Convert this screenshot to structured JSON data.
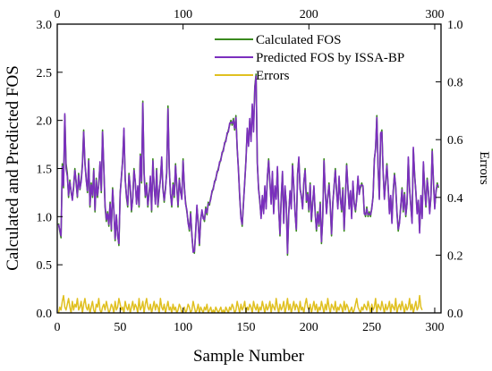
{
  "chart_data": {
    "type": "line",
    "xlabel": "Sample Number",
    "ylabel_left": "Calculated and Predicted FOS",
    "ylabel_right": "Errors",
    "xlim": [
      0,
      305
    ],
    "ylim_left": [
      0,
      3.0
    ],
    "ylim_right": [
      0,
      1.0
    ],
    "x_ticks": [
      "0",
      "50",
      "100",
      "150",
      "200",
      "250",
      "300"
    ],
    "x_ticks_top": [
      "0",
      "100",
      "200",
      "300"
    ],
    "y_ticks_left": [
      "0.0",
      "0.5",
      "1.0",
      "1.5",
      "2.0",
      "2.5",
      "3.0"
    ],
    "y_ticks_right": [
      "0.0",
      "0.2",
      "0.4",
      "0.6",
      "0.8",
      "1.0"
    ],
    "grid": false,
    "legend_position": "top-center",
    "series": [
      {
        "name": "Calculated FOS",
        "axis": "left",
        "color": "#3a8a1e",
        "values": [
          0.93,
          0.85,
          0.78,
          1.55,
          1.3,
          2.05,
          1.55,
          1.45,
          1.2,
          1.38,
          1.25,
          1.18,
          1.3,
          1.5,
          1.35,
          1.2,
          1.45,
          1.28,
          1.38,
          1.55,
          1.9,
          1.55,
          1.4,
          1.25,
          1.6,
          1.1,
          1.35,
          1.2,
          1.5,
          1.05,
          1.4,
          1.2,
          1.35,
          1.55,
          1.25,
          1.9,
          1.5,
          1.1,
          0.95,
          1.05,
          0.9,
          1.15,
          0.85,
          1.3,
          1.05,
          0.75,
          1.0,
          0.82,
          0.7,
          1.25,
          1.4,
          1.6,
          1.9,
          1.4,
          1.2,
          1.1,
          1.45,
          1.3,
          1.05,
          1.2,
          1.5,
          1.35,
          1.15,
          1.3,
          1.1,
          1.65,
          1.35,
          2.2,
          1.45,
          1.2,
          1.35,
          1.1,
          1.25,
          1.4,
          1.05,
          1.6,
          1.3,
          1.15,
          1.5,
          1.1,
          1.25,
          1.4,
          1.6,
          1.3,
          1.15,
          1.3,
          1.45,
          2.15,
          1.5,
          1.25,
          1.1,
          1.35,
          1.2,
          1.55,
          1.3,
          1.1,
          1.4,
          1.25,
          1.2,
          1.6,
          1.3,
          1.15,
          1.05,
          0.95,
          0.85,
          1.05,
          0.8,
          0.65,
          0.62,
          0.85,
          1.1,
          0.95,
          0.7,
          0.98,
          1.05,
          1.0,
          0.95,
          1.1,
          1.02,
          1.15,
          1.12,
          1.2,
          1.25,
          1.3,
          1.35,
          1.4,
          1.45,
          1.5,
          1.55,
          1.6,
          1.65,
          1.7,
          1.75,
          1.8,
          1.85,
          1.9,
          1.95,
          2.0,
          1.95,
          2.02,
          1.9,
          2.05,
          1.7,
          1.5,
          1.2,
          1.0,
          0.9,
          1.15,
          1.35,
          1.6,
          1.9,
          1.75,
          2.0,
          1.8,
          2.15,
          1.9,
          2.35,
          2.48,
          1.55,
          1.3,
          1.15,
          1.0,
          1.2,
          1.05,
          1.3,
          1.1,
          1.4,
          1.6,
          1.35,
          1.15,
          1.45,
          1.05,
          1.3,
          1.2,
          1.5,
          1.1,
          0.8,
          1.2,
          1.45,
          0.95,
          1.3,
          1.15,
          0.6,
          1.05,
          1.25,
          1.1,
          1.55,
          1.3,
          1.05,
          0.85,
          1.45,
          1.6,
          1.3,
          1.2,
          1.1,
          1.35,
          1.5,
          1.15,
          1.25,
          1.05,
          1.35,
          0.95,
          1.15,
          1.3,
          1.05,
          0.85,
          1.05,
          0.9,
          1.15,
          0.72,
          1.0,
          1.6,
          1.25,
          1.05,
          1.2,
          1.35,
          1.1,
          0.8,
          1.15,
          1.3,
          1.5,
          1.25,
          1.1,
          1.4,
          1.2,
          1.05,
          1.3,
          0.85,
          1.2,
          1.55,
          1.3,
          1.1,
          1.25,
          1.0,
          1.35,
          1.15,
          1.05,
          1.2,
          1.4,
          1.25,
          1.3,
          1.35,
          1.3,
          1.05,
          1.0,
          1.1,
          1.0,
          1.05,
          1.0,
          1.1,
          1.2,
          1.6,
          1.7,
          2.05,
          1.5,
          1.2,
          1.85,
          1.9,
          1.45,
          1.2,
          1.35,
          1.55,
          1.3,
          1.05,
          1.2,
          0.95,
          1.25,
          1.45,
          1.3,
          1.05,
          0.85,
          0.95,
          1.1,
          1.3,
          1.05,
          1.25,
          1.0,
          1.15,
          1.6,
          1.3,
          1.1,
          0.95,
          1.7,
          1.45,
          1.25,
          1.05,
          1.15,
          0.85,
          1.2,
          1.0,
          1.55,
          1.3,
          1.1,
          1.4,
          1.25,
          1.05,
          1.2,
          1.7,
          1.35,
          1.1,
          1.25,
          1.35,
          1.3
        ]
      },
      {
        "name": "Predicted FOS by ISSA-BP",
        "axis": "left",
        "color": "#7b2fbe",
        "values": [
          0.92,
          0.86,
          0.8,
          1.52,
          1.32,
          2.07,
          1.5,
          1.42,
          1.22,
          1.36,
          1.27,
          1.17,
          1.32,
          1.48,
          1.37,
          1.21,
          1.43,
          1.29,
          1.36,
          1.53,
          1.88,
          1.57,
          1.38,
          1.27,
          1.58,
          1.12,
          1.33,
          1.22,
          1.48,
          1.07,
          1.38,
          1.22,
          1.33,
          1.57,
          1.27,
          1.88,
          1.52,
          1.12,
          0.97,
          1.03,
          0.92,
          1.13,
          0.87,
          1.28,
          1.07,
          0.77,
          1.02,
          0.8,
          0.72,
          1.23,
          1.42,
          1.58,
          1.92,
          1.38,
          1.22,
          1.12,
          1.43,
          1.32,
          1.07,
          1.18,
          1.48,
          1.37,
          1.13,
          1.32,
          1.12,
          1.63,
          1.37,
          2.18,
          1.47,
          1.22,
          1.33,
          1.12,
          1.23,
          1.42,
          1.07,
          1.58,
          1.32,
          1.13,
          1.48,
          1.12,
          1.27,
          1.38,
          1.62,
          1.28,
          1.17,
          1.28,
          1.47,
          2.12,
          1.52,
          1.23,
          1.12,
          1.33,
          1.22,
          1.53,
          1.32,
          1.12,
          1.38,
          1.27,
          1.18,
          1.58,
          1.32,
          1.13,
          1.07,
          0.93,
          0.87,
          1.03,
          0.82,
          0.63,
          0.64,
          0.83,
          1.12,
          0.93,
          0.72,
          0.96,
          1.07,
          0.98,
          0.97,
          1.08,
          1.04,
          1.13,
          1.14,
          1.18,
          1.27,
          1.28,
          1.37,
          1.38,
          1.47,
          1.48,
          1.57,
          1.58,
          1.67,
          1.68,
          1.77,
          1.78,
          1.87,
          1.88,
          1.97,
          1.98,
          1.97,
          2.0,
          1.92,
          2.03,
          1.72,
          1.48,
          1.22,
          0.98,
          0.92,
          1.13,
          1.37,
          1.58,
          1.92,
          1.73,
          2.02,
          1.78,
          2.17,
          1.88,
          2.33,
          2.46,
          1.57,
          1.28,
          1.17,
          0.98,
          1.22,
          1.03,
          1.32,
          1.08,
          1.42,
          1.58,
          1.37,
          1.13,
          1.47,
          1.03,
          1.32,
          1.18,
          1.52,
          1.08,
          0.82,
          1.18,
          1.47,
          0.93,
          1.32,
          1.13,
          0.62,
          1.03,
          1.27,
          1.08,
          1.53,
          1.32,
          1.03,
          0.87,
          1.43,
          1.62,
          1.28,
          1.22,
          1.08,
          1.37,
          1.48,
          1.17,
          1.23,
          1.07,
          1.33,
          0.97,
          1.13,
          1.32,
          1.03,
          0.87,
          1.03,
          0.92,
          1.13,
          0.74,
          0.98,
          1.58,
          1.27,
          1.03,
          1.22,
          1.33,
          1.12,
          0.82,
          1.13,
          1.32,
          1.48,
          1.27,
          1.08,
          1.42,
          1.18,
          1.07,
          1.28,
          0.87,
          1.18,
          1.53,
          1.32,
          1.08,
          1.27,
          0.98,
          1.37,
          1.13,
          1.07,
          1.18,
          1.42,
          1.23,
          1.32,
          1.33,
          1.32,
          1.03,
          1.02,
          1.08,
          1.02,
          1.03,
          1.02,
          1.08,
          1.22,
          1.58,
          1.72,
          2.03,
          1.52,
          1.18,
          1.87,
          1.88,
          1.47,
          1.18,
          1.37,
          1.53,
          1.32,
          1.03,
          1.22,
          0.93,
          1.27,
          1.43,
          1.32,
          1.03,
          0.87,
          0.93,
          1.12,
          1.28,
          1.07,
          1.23,
          1.02,
          1.13,
          1.62,
          1.28,
          1.12,
          0.93,
          1.72,
          1.43,
          1.27,
          1.03,
          1.17,
          0.83,
          1.22,
          0.98,
          1.57,
          1.28,
          1.12,
          1.38,
          1.27,
          1.03,
          1.22,
          1.68,
          1.37,
          1.08,
          1.27,
          1.33,
          1.32
        ]
      },
      {
        "name": "Errors",
        "axis": "right",
        "color": "#e0c020",
        "values": [
          0.0,
          0.02,
          0.01,
          0.04,
          0.06,
          0.02,
          0.01,
          0.03,
          0.05,
          0.02,
          0.0,
          0.04,
          0.01,
          0.03,
          0.02,
          0.05,
          0.01,
          0.02,
          0.04,
          0.0,
          0.03,
          0.05,
          0.02,
          0.01,
          0.03,
          0.0,
          0.02,
          0.04,
          0.01,
          0.0,
          0.03,
          0.02,
          0.05,
          0.01,
          0.0,
          0.02,
          0.03,
          0.01,
          0.04,
          0.02,
          0.0,
          0.01,
          0.03,
          0.02,
          0.0,
          0.04,
          0.01,
          0.02,
          0.05,
          0.03,
          0.01,
          0.02,
          0.0,
          0.04,
          0.02,
          0.01,
          0.03,
          0.0,
          0.02,
          0.04,
          0.01,
          0.03,
          0.02,
          0.0,
          0.05,
          0.01,
          0.02,
          0.04,
          0.0,
          0.03,
          0.05,
          0.02,
          0.01,
          0.03,
          0.0,
          0.02,
          0.04,
          0.01,
          0.03,
          0.02,
          0.0,
          0.05,
          0.02,
          0.01,
          0.03,
          0.0,
          0.02,
          0.04,
          0.01,
          0.02,
          0.0,
          0.03,
          0.01,
          0.02,
          0.0,
          0.01,
          0.03,
          0.02,
          0.0,
          0.01,
          0.02,
          0.0,
          0.01,
          0.03,
          0.02,
          0.0,
          0.01,
          0.04,
          0.02,
          0.0,
          0.01,
          0.03,
          0.0,
          0.02,
          0.01,
          0.0,
          0.02,
          0.01,
          0.03,
          0.0,
          0.01,
          0.02,
          0.0,
          0.01,
          0.0,
          0.02,
          0.01,
          0.0,
          0.01,
          0.02,
          0.0,
          0.01,
          0.0,
          0.02,
          0.01,
          0.0,
          0.02,
          0.01,
          0.03,
          0.02,
          0.0,
          0.01,
          0.04,
          0.02,
          0.0,
          0.03,
          0.01,
          0.02,
          0.04,
          0.0,
          0.02,
          0.01,
          0.03,
          0.02,
          0.0,
          0.04,
          0.02,
          0.01,
          0.03,
          0.0,
          0.02,
          0.01,
          0.04,
          0.02,
          0.0,
          0.03,
          0.01,
          0.02,
          0.04,
          0.0,
          0.03,
          0.02,
          0.01,
          0.05,
          0.02,
          0.0,
          0.03,
          0.01,
          0.02,
          0.04,
          0.0,
          0.02,
          0.05,
          0.01,
          0.03,
          0.0,
          0.02,
          0.04,
          0.01,
          0.03,
          0.02,
          0.0,
          0.04,
          0.01,
          0.02,
          0.0,
          0.03,
          0.05,
          0.02,
          0.01,
          0.03,
          0.0,
          0.02,
          0.04,
          0.01,
          0.03,
          0.0,
          0.02,
          0.01,
          0.04,
          0.02,
          0.0,
          0.03,
          0.01,
          0.05,
          0.02,
          0.0,
          0.03,
          0.02,
          0.01,
          0.04,
          0.0,
          0.02,
          0.01,
          0.03,
          0.02,
          0.0,
          0.04,
          0.01,
          0.03,
          0.02,
          0.0,
          0.01,
          0.02,
          0.0,
          0.01,
          0.03,
          0.05,
          0.02,
          0.01,
          0.0,
          0.02,
          0.01,
          0.03,
          0.02,
          0.01,
          0.04,
          0.02,
          0.0,
          0.03,
          0.01,
          0.02,
          0.05,
          0.0,
          0.03,
          0.02,
          0.01,
          0.04,
          0.02,
          0.0,
          0.03,
          0.01,
          0.02,
          0.04,
          0.0,
          0.03,
          0.02,
          0.01,
          0.05,
          0.0,
          0.02,
          0.03,
          0.01,
          0.04,
          0.02,
          0.0,
          0.03,
          0.01,
          0.02,
          0.05,
          0.01,
          0.03,
          0.0,
          0.02,
          0.04,
          0.01,
          0.02,
          0.06,
          0.02,
          0.01
        ]
      }
    ]
  }
}
